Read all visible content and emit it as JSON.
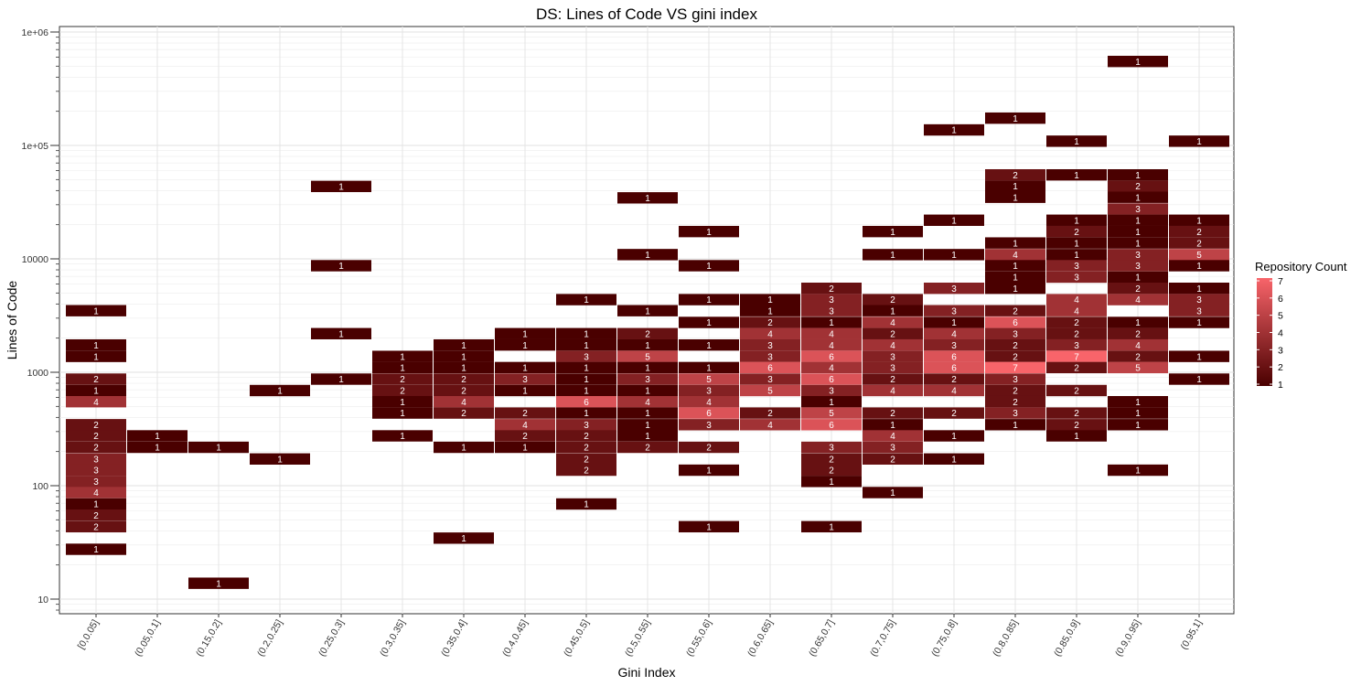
{
  "chart_data": {
    "type": "heatmap",
    "title": "DS: Lines of Code VS gini index",
    "xlabel": "Gini Index",
    "ylabel": "Lines of Code",
    "y_scale": "log10",
    "ylim": [
      7.6,
      1100000
    ],
    "y_ticks": [
      {
        "value": 10,
        "label": "10"
      },
      {
        "value": 100,
        "label": "100"
      },
      {
        "value": 1000,
        "label": "1000"
      },
      {
        "value": 10000,
        "label": "10000"
      },
      {
        "value": 100000,
        "label": "1e+05"
      },
      {
        "value": 1000000,
        "label": "1e+06"
      }
    ],
    "categories": [
      "[0,0.05]",
      "(0.05,0.1]",
      "(0.15,0.2]",
      "(0.2,0.25]",
      "(0.25,0.3]",
      "(0.3,0.35]",
      "(0.35,0.4]",
      "(0.4,0.45]",
      "(0.45,0.5]",
      "(0.5,0.55]",
      "(0.55,0.6]",
      "(0.6,0.65]",
      "(0.65,0.7]",
      "(0.7,0.75]",
      "(0.75,0.8]",
      "(0.8,0.85]",
      "(0.85,0.9]",
      "(0.9,0.95]",
      "(0.95,1]"
    ],
    "legend": {
      "title": "Repository Count",
      "min": 1,
      "max": 7,
      "ticks": [
        1,
        2,
        3,
        4,
        5,
        6,
        7
      ],
      "position": "right"
    },
    "colors": {
      "low": "#4a0000",
      "high": "#f8646a"
    },
    "grid": true,
    "cells": [
      {
        "x": 0,
        "y": 3490,
        "v": 1
      },
      {
        "x": 0,
        "y": 1740,
        "v": 1
      },
      {
        "x": 0,
        "y": 1380,
        "v": 1
      },
      {
        "x": 0,
        "y": 870,
        "v": 2
      },
      {
        "x": 0,
        "y": 690,
        "v": 1
      },
      {
        "x": 0,
        "y": 550,
        "v": 4
      },
      {
        "x": 0,
        "y": 345,
        "v": 2
      },
      {
        "x": 0,
        "y": 275,
        "v": 2
      },
      {
        "x": 0,
        "y": 218,
        "v": 2
      },
      {
        "x": 0,
        "y": 172,
        "v": 3
      },
      {
        "x": 0,
        "y": 137,
        "v": 3
      },
      {
        "x": 0,
        "y": 109,
        "v": 3
      },
      {
        "x": 0,
        "y": 87,
        "v": 4
      },
      {
        "x": 0,
        "y": 69,
        "v": 1
      },
      {
        "x": 0,
        "y": 55,
        "v": 2
      },
      {
        "x": 0,
        "y": 43.5,
        "v": 2
      },
      {
        "x": 0,
        "y": 27.5,
        "v": 1
      },
      {
        "x": 1,
        "y": 275,
        "v": 1
      },
      {
        "x": 1,
        "y": 218,
        "v": 1
      },
      {
        "x": 2,
        "y": 218,
        "v": 1
      },
      {
        "x": 2,
        "y": 13.8,
        "v": 1
      },
      {
        "x": 3,
        "y": 690,
        "v": 1
      },
      {
        "x": 3,
        "y": 172,
        "v": 1
      },
      {
        "x": 4,
        "y": 43500,
        "v": 1
      },
      {
        "x": 4,
        "y": 8700,
        "v": 1
      },
      {
        "x": 4,
        "y": 2190,
        "v": 1
      },
      {
        "x": 4,
        "y": 870,
        "v": 1
      },
      {
        "x": 5,
        "y": 1380,
        "v": 1
      },
      {
        "x": 5,
        "y": 1100,
        "v": 1
      },
      {
        "x": 5,
        "y": 870,
        "v": 2
      },
      {
        "x": 5,
        "y": 690,
        "v": 2
      },
      {
        "x": 5,
        "y": 550,
        "v": 1
      },
      {
        "x": 5,
        "y": 437,
        "v": 1
      },
      {
        "x": 5,
        "y": 275,
        "v": 1
      },
      {
        "x": 6,
        "y": 1740,
        "v": 1
      },
      {
        "x": 6,
        "y": 1380,
        "v": 1
      },
      {
        "x": 6,
        "y": 1100,
        "v": 1
      },
      {
        "x": 6,
        "y": 870,
        "v": 2
      },
      {
        "x": 6,
        "y": 690,
        "v": 2
      },
      {
        "x": 6,
        "y": 550,
        "v": 4
      },
      {
        "x": 6,
        "y": 437,
        "v": 2
      },
      {
        "x": 6,
        "y": 218,
        "v": 1
      },
      {
        "x": 6,
        "y": 34.5,
        "v": 1
      },
      {
        "x": 7,
        "y": 2190,
        "v": 1
      },
      {
        "x": 7,
        "y": 1740,
        "v": 1
      },
      {
        "x": 7,
        "y": 1100,
        "v": 1
      },
      {
        "x": 7,
        "y": 870,
        "v": 3
      },
      {
        "x": 7,
        "y": 690,
        "v": 1
      },
      {
        "x": 7,
        "y": 437,
        "v": 2
      },
      {
        "x": 7,
        "y": 345,
        "v": 4
      },
      {
        "x": 7,
        "y": 275,
        "v": 2
      },
      {
        "x": 7,
        "y": 218,
        "v": 1
      },
      {
        "x": 8,
        "y": 4370,
        "v": 1
      },
      {
        "x": 8,
        "y": 2190,
        "v": 1
      },
      {
        "x": 8,
        "y": 1740,
        "v": 1
      },
      {
        "x": 8,
        "y": 1380,
        "v": 3
      },
      {
        "x": 8,
        "y": 1100,
        "v": 1
      },
      {
        "x": 8,
        "y": 870,
        "v": 1
      },
      {
        "x": 8,
        "y": 690,
        "v": 1
      },
      {
        "x": 8,
        "y": 550,
        "v": 6
      },
      {
        "x": 8,
        "y": 437,
        "v": 1
      },
      {
        "x": 8,
        "y": 345,
        "v": 3
      },
      {
        "x": 8,
        "y": 275,
        "v": 2
      },
      {
        "x": 8,
        "y": 218,
        "v": 2
      },
      {
        "x": 8,
        "y": 172,
        "v": 2
      },
      {
        "x": 8,
        "y": 137,
        "v": 2
      },
      {
        "x": 8,
        "y": 69,
        "v": 1
      },
      {
        "x": 9,
        "y": 34500,
        "v": 1
      },
      {
        "x": 9,
        "y": 10900,
        "v": 1
      },
      {
        "x": 9,
        "y": 3490,
        "v": 1
      },
      {
        "x": 9,
        "y": 2190,
        "v": 2
      },
      {
        "x": 9,
        "y": 1740,
        "v": 1
      },
      {
        "x": 9,
        "y": 1380,
        "v": 5
      },
      {
        "x": 9,
        "y": 1100,
        "v": 1
      },
      {
        "x": 9,
        "y": 870,
        "v": 3
      },
      {
        "x": 9,
        "y": 690,
        "v": 1
      },
      {
        "x": 9,
        "y": 550,
        "v": 4
      },
      {
        "x": 9,
        "y": 437,
        "v": 1
      },
      {
        "x": 9,
        "y": 345,
        "v": 1
      },
      {
        "x": 9,
        "y": 275,
        "v": 1
      },
      {
        "x": 9,
        "y": 218,
        "v": 2
      },
      {
        "x": 10,
        "y": 17400,
        "v": 1
      },
      {
        "x": 10,
        "y": 8700,
        "v": 1
      },
      {
        "x": 10,
        "y": 4370,
        "v": 1
      },
      {
        "x": 10,
        "y": 2750,
        "v": 1
      },
      {
        "x": 10,
        "y": 1740,
        "v": 1
      },
      {
        "x": 10,
        "y": 1100,
        "v": 1
      },
      {
        "x": 10,
        "y": 870,
        "v": 5
      },
      {
        "x": 10,
        "y": 690,
        "v": 3
      },
      {
        "x": 10,
        "y": 550,
        "v": 4
      },
      {
        "x": 10,
        "y": 437,
        "v": 6
      },
      {
        "x": 10,
        "y": 345,
        "v": 3
      },
      {
        "x": 10,
        "y": 218,
        "v": 2
      },
      {
        "x": 10,
        "y": 137,
        "v": 1
      },
      {
        "x": 10,
        "y": 43.5,
        "v": 1
      },
      {
        "x": 11,
        "y": 4370,
        "v": 1
      },
      {
        "x": 11,
        "y": 3490,
        "v": 1
      },
      {
        "x": 11,
        "y": 2750,
        "v": 2
      },
      {
        "x": 11,
        "y": 2190,
        "v": 4
      },
      {
        "x": 11,
        "y": 1740,
        "v": 3
      },
      {
        "x": 11,
        "y": 1380,
        "v": 3
      },
      {
        "x": 11,
        "y": 1100,
        "v": 6
      },
      {
        "x": 11,
        "y": 870,
        "v": 3
      },
      {
        "x": 11,
        "y": 690,
        "v": 5
      },
      {
        "x": 11,
        "y": 437,
        "v": 2
      },
      {
        "x": 11,
        "y": 345,
        "v": 4
      },
      {
        "x": 12,
        "y": 5500,
        "v": 2
      },
      {
        "x": 12,
        "y": 4370,
        "v": 3
      },
      {
        "x": 12,
        "y": 3490,
        "v": 3
      },
      {
        "x": 12,
        "y": 2750,
        "v": 1
      },
      {
        "x": 12,
        "y": 2190,
        "v": 4
      },
      {
        "x": 12,
        "y": 1740,
        "v": 4
      },
      {
        "x": 12,
        "y": 1380,
        "v": 6
      },
      {
        "x": 12,
        "y": 1100,
        "v": 4
      },
      {
        "x": 12,
        "y": 870,
        "v": 6
      },
      {
        "x": 12,
        "y": 690,
        "v": 3
      },
      {
        "x": 12,
        "y": 550,
        "v": 1
      },
      {
        "x": 12,
        "y": 437,
        "v": 5
      },
      {
        "x": 12,
        "y": 345,
        "v": 6
      },
      {
        "x": 12,
        "y": 218,
        "v": 3
      },
      {
        "x": 12,
        "y": 172,
        "v": 2
      },
      {
        "x": 12,
        "y": 137,
        "v": 2
      },
      {
        "x": 12,
        "y": 109,
        "v": 1
      },
      {
        "x": 12,
        "y": 43.5,
        "v": 1
      },
      {
        "x": 13,
        "y": 17400,
        "v": 1
      },
      {
        "x": 13,
        "y": 10900,
        "v": 1
      },
      {
        "x": 13,
        "y": 4370,
        "v": 2
      },
      {
        "x": 13,
        "y": 3490,
        "v": 1
      },
      {
        "x": 13,
        "y": 2750,
        "v": 4
      },
      {
        "x": 13,
        "y": 2190,
        "v": 2
      },
      {
        "x": 13,
        "y": 1740,
        "v": 4
      },
      {
        "x": 13,
        "y": 1380,
        "v": 3
      },
      {
        "x": 13,
        "y": 1100,
        "v": 3
      },
      {
        "x": 13,
        "y": 870,
        "v": 2
      },
      {
        "x": 13,
        "y": 690,
        "v": 4
      },
      {
        "x": 13,
        "y": 437,
        "v": 2
      },
      {
        "x": 13,
        "y": 345,
        "v": 1
      },
      {
        "x": 13,
        "y": 275,
        "v": 4
      },
      {
        "x": 13,
        "y": 218,
        "v": 3
      },
      {
        "x": 13,
        "y": 172,
        "v": 2
      },
      {
        "x": 13,
        "y": 87,
        "v": 1
      },
      {
        "x": 14,
        "y": 21900,
        "v": 1
      },
      {
        "x": 14,
        "y": 10900,
        "v": 1
      },
      {
        "x": 14,
        "y": 5500,
        "v": 3
      },
      {
        "x": 14,
        "y": 3490,
        "v": 3
      },
      {
        "x": 14,
        "y": 2750,
        "v": 1
      },
      {
        "x": 14,
        "y": 2190,
        "v": 4
      },
      {
        "x": 14,
        "y": 1740,
        "v": 3
      },
      {
        "x": 14,
        "y": 1380,
        "v": 6
      },
      {
        "x": 14,
        "y": 1100,
        "v": 6
      },
      {
        "x": 14,
        "y": 870,
        "v": 2
      },
      {
        "x": 14,
        "y": 690,
        "v": 4
      },
      {
        "x": 14,
        "y": 437,
        "v": 2
      },
      {
        "x": 14,
        "y": 275,
        "v": 1
      },
      {
        "x": 14,
        "y": 172,
        "v": 1
      },
      {
        "x": 14,
        "y": 137000,
        "v": 1
      },
      {
        "x": 15,
        "y": 174000,
        "v": 1
      },
      {
        "x": 15,
        "y": 55000,
        "v": 2
      },
      {
        "x": 15,
        "y": 43700,
        "v": 1
      },
      {
        "x": 15,
        "y": 34900,
        "v": 1
      },
      {
        "x": 15,
        "y": 13800,
        "v": 1
      },
      {
        "x": 15,
        "y": 10900,
        "v": 4
      },
      {
        "x": 15,
        "y": 8700,
        "v": 1
      },
      {
        "x": 15,
        "y": 6900,
        "v": 1
      },
      {
        "x": 15,
        "y": 5500,
        "v": 1
      },
      {
        "x": 15,
        "y": 3490,
        "v": 2
      },
      {
        "x": 15,
        "y": 2750,
        "v": 6
      },
      {
        "x": 15,
        "y": 2190,
        "v": 3
      },
      {
        "x": 15,
        "y": 1740,
        "v": 2
      },
      {
        "x": 15,
        "y": 1380,
        "v": 2
      },
      {
        "x": 15,
        "y": 1100,
        "v": 7
      },
      {
        "x": 15,
        "y": 870,
        "v": 3
      },
      {
        "x": 15,
        "y": 690,
        "v": 2
      },
      {
        "x": 15,
        "y": 550,
        "v": 2
      },
      {
        "x": 15,
        "y": 437,
        "v": 3
      },
      {
        "x": 15,
        "y": 345,
        "v": 1
      },
      {
        "x": 16,
        "y": 109000,
        "v": 1
      },
      {
        "x": 16,
        "y": 55000,
        "v": 1
      },
      {
        "x": 16,
        "y": 21900,
        "v": 1
      },
      {
        "x": 16,
        "y": 17400,
        "v": 2
      },
      {
        "x": 16,
        "y": 13800,
        "v": 1
      },
      {
        "x": 16,
        "y": 10900,
        "v": 1
      },
      {
        "x": 16,
        "y": 8700,
        "v": 3
      },
      {
        "x": 16,
        "y": 6900,
        "v": 3
      },
      {
        "x": 16,
        "y": 4370,
        "v": 4
      },
      {
        "x": 16,
        "y": 3490,
        "v": 4
      },
      {
        "x": 16,
        "y": 2750,
        "v": 2
      },
      {
        "x": 16,
        "y": 2190,
        "v": 2
      },
      {
        "x": 16,
        "y": 1740,
        "v": 3
      },
      {
        "x": 16,
        "y": 1380,
        "v": 7
      },
      {
        "x": 16,
        "y": 1100,
        "v": 2
      },
      {
        "x": 16,
        "y": 690,
        "v": 2
      },
      {
        "x": 16,
        "y": 437,
        "v": 2
      },
      {
        "x": 16,
        "y": 345,
        "v": 2
      },
      {
        "x": 16,
        "y": 275,
        "v": 1
      },
      {
        "x": 17,
        "y": 550000,
        "v": 1
      },
      {
        "x": 17,
        "y": 55000,
        "v": 1
      },
      {
        "x": 17,
        "y": 43700,
        "v": 2
      },
      {
        "x": 17,
        "y": 34900,
        "v": 1
      },
      {
        "x": 17,
        "y": 27500,
        "v": 3
      },
      {
        "x": 17,
        "y": 21900,
        "v": 1
      },
      {
        "x": 17,
        "y": 17400,
        "v": 1
      },
      {
        "x": 17,
        "y": 13800,
        "v": 1
      },
      {
        "x": 17,
        "y": 10900,
        "v": 3
      },
      {
        "x": 17,
        "y": 8700,
        "v": 3
      },
      {
        "x": 17,
        "y": 6900,
        "v": 1
      },
      {
        "x": 17,
        "y": 5500,
        "v": 2
      },
      {
        "x": 17,
        "y": 4370,
        "v": 4
      },
      {
        "x": 17,
        "y": 2750,
        "v": 1
      },
      {
        "x": 17,
        "y": 2190,
        "v": 2
      },
      {
        "x": 17,
        "y": 1740,
        "v": 4
      },
      {
        "x": 17,
        "y": 1380,
        "v": 2
      },
      {
        "x": 17,
        "y": 1100,
        "v": 5
      },
      {
        "x": 17,
        "y": 550,
        "v": 1
      },
      {
        "x": 17,
        "y": 437,
        "v": 1
      },
      {
        "x": 17,
        "y": 345,
        "v": 1
      },
      {
        "x": 17,
        "y": 137,
        "v": 1
      },
      {
        "x": 18,
        "y": 109000,
        "v": 1
      },
      {
        "x": 18,
        "y": 21900,
        "v": 1
      },
      {
        "x": 18,
        "y": 17400,
        "v": 2
      },
      {
        "x": 18,
        "y": 13800,
        "v": 2
      },
      {
        "x": 18,
        "y": 10900,
        "v": 5
      },
      {
        "x": 18,
        "y": 8700,
        "v": 1
      },
      {
        "x": 18,
        "y": 5500,
        "v": 1
      },
      {
        "x": 18,
        "y": 4370,
        "v": 3
      },
      {
        "x": 18,
        "y": 3490,
        "v": 3
      },
      {
        "x": 18,
        "y": 2750,
        "v": 1
      },
      {
        "x": 18,
        "y": 1380,
        "v": 1
      },
      {
        "x": 18,
        "y": 870,
        "v": 1
      }
    ]
  }
}
